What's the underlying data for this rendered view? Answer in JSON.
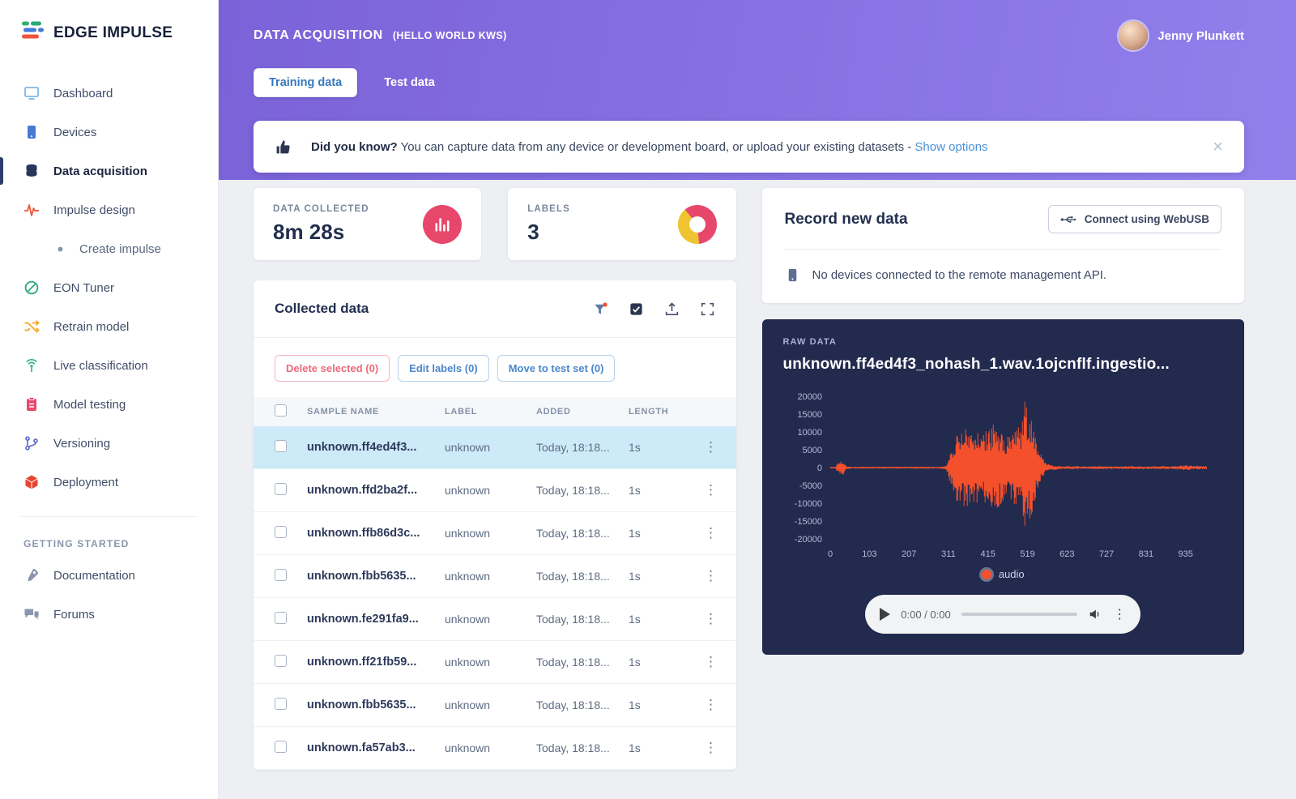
{
  "brand": {
    "name": "EDGE IMPULSE"
  },
  "user": {
    "name": "Jenny Plunkett"
  },
  "colors": {
    "accent": "#f4502c",
    "danger": "#e8476c",
    "yellow": "#f0c330",
    "blue": "#4a87cc",
    "navy": "#222a4e",
    "link": "#4a90d9",
    "tab-text": "#3678bd",
    "purple1": "#7b62d8",
    "purple2": "#9180ec",
    "selected-row": "#cdeaf8"
  },
  "header": {
    "title": "DATA ACQUISITION",
    "project": "(HELLO WORLD KWS)",
    "tabs": [
      {
        "label": "Training data",
        "active": true
      },
      {
        "label": "Test data",
        "active": false
      }
    ],
    "banner": {
      "emphasis": "Did you know?",
      "text": " You can capture data from any device or development board, or upload your existing datasets - ",
      "link": "Show options"
    }
  },
  "sidebar": {
    "items": [
      {
        "label": "Dashboard",
        "icon": "dashboard-icon",
        "color": "#7fb8ea"
      },
      {
        "label": "Devices",
        "icon": "devices-icon",
        "color": "#4878d0"
      },
      {
        "label": "Data acquisition",
        "icon": "data-acquisition-icon",
        "color": "#2a3558",
        "active": true
      },
      {
        "label": "Impulse design",
        "icon": "impulse-design-icon",
        "color": "#f0543c"
      },
      {
        "label": "Create impulse",
        "icon": "dot-icon",
        "color": "#8593ad",
        "sub": true
      },
      {
        "label": "EON Tuner",
        "icon": "eon-tuner-icon",
        "color": "#2aa876"
      },
      {
        "label": "Retrain model",
        "icon": "retrain-icon",
        "color": "#f5a623"
      },
      {
        "label": "Live classification",
        "icon": "live-classification-icon",
        "color": "#35b585"
      },
      {
        "label": "Model testing",
        "icon": "model-testing-icon",
        "color": "#e8486e"
      },
      {
        "label": "Versioning",
        "icon": "versioning-icon",
        "color": "#5868c8"
      },
      {
        "label": "Deployment",
        "icon": "deployment-icon",
        "color": "#e8432e"
      }
    ],
    "section_title": "GETTING STARTED",
    "secondary_items": [
      {
        "label": "Documentation",
        "icon": "documentation-icon",
        "color": "#8a96ab"
      },
      {
        "label": "Forums",
        "icon": "forums-icon",
        "color": "#8a96ab"
      }
    ]
  },
  "stats": [
    {
      "label": "DATA COLLECTED",
      "value": "8m 28s"
    },
    {
      "label": "LABELS",
      "value": "3"
    }
  ],
  "collected": {
    "title": "Collected data",
    "buttons": [
      {
        "label": "Delete selected (0)",
        "style": "danger"
      },
      {
        "label": "Edit labels (0)",
        "style": "primary"
      },
      {
        "label": "Move to test set (0)",
        "style": "primary"
      }
    ],
    "columns": [
      "SAMPLE NAME",
      "LABEL",
      "ADDED",
      "LENGTH"
    ],
    "rows": [
      {
        "name": "unknown.ff4ed4f3...",
        "label": "unknown",
        "added": "Today, 18:18...",
        "length": "1s",
        "selected": true
      },
      {
        "name": "unknown.ffd2ba2f...",
        "label": "unknown",
        "added": "Today, 18:18...",
        "length": "1s"
      },
      {
        "name": "unknown.ffb86d3c...",
        "label": "unknown",
        "added": "Today, 18:18...",
        "length": "1s"
      },
      {
        "name": "unknown.fbb5635...",
        "label": "unknown",
        "added": "Today, 18:18...",
        "length": "1s"
      },
      {
        "name": "unknown.fe291fa9...",
        "label": "unknown",
        "added": "Today, 18:18...",
        "length": "1s"
      },
      {
        "name": "unknown.ff21fb59...",
        "label": "unknown",
        "added": "Today, 18:18...",
        "length": "1s"
      },
      {
        "name": "unknown.fbb5635...",
        "label": "unknown",
        "added": "Today, 18:18...",
        "length": "1s"
      },
      {
        "name": "unknown.fa57ab3...",
        "label": "unknown",
        "added": "Today, 18:18...",
        "length": "1s"
      }
    ]
  },
  "record": {
    "title": "Record new data",
    "button": "Connect using WebUSB",
    "message": "No devices connected to the remote management API."
  },
  "raw": {
    "label": "RAW DATA",
    "filename": "unknown.ff4ed4f3_nohash_1.wav.1ojcnflf.ingestio...",
    "player": {
      "time": "0:00 / 0:00"
    }
  },
  "chart_data": {
    "type": "line",
    "title": "audio waveform",
    "series_name": "audio",
    "color": "#f4502c",
    "ylim": [
      -20000,
      20000
    ],
    "xlim": [
      0,
      990
    ],
    "y_ticks": [
      20000,
      15000,
      10000,
      5000,
      0,
      -5000,
      -10000,
      -15000,
      -20000
    ],
    "x_ticks": [
      0,
      103,
      207,
      311,
      415,
      519,
      623,
      727,
      831,
      935
    ],
    "legend_position": "bottom",
    "grid": false,
    "envelope": [
      [
        0,
        260
      ],
      [
        14,
        260
      ],
      [
        20,
        1700
      ],
      [
        34,
        2200
      ],
      [
        44,
        400
      ],
      [
        60,
        280
      ],
      [
        290,
        280
      ],
      [
        305,
        600
      ],
      [
        318,
        5200
      ],
      [
        332,
        9800
      ],
      [
        360,
        11200
      ],
      [
        400,
        9600
      ],
      [
        430,
        12500
      ],
      [
        460,
        9200
      ],
      [
        488,
        10500
      ],
      [
        505,
        13000
      ],
      [
        514,
        20000
      ],
      [
        522,
        14000
      ],
      [
        530,
        16500
      ],
      [
        540,
        8800
      ],
      [
        552,
        4600
      ],
      [
        565,
        1500
      ],
      [
        580,
        700
      ],
      [
        620,
        420
      ],
      [
        760,
        380
      ],
      [
        900,
        420
      ],
      [
        940,
        700
      ],
      [
        965,
        520
      ],
      [
        990,
        480
      ]
    ]
  }
}
